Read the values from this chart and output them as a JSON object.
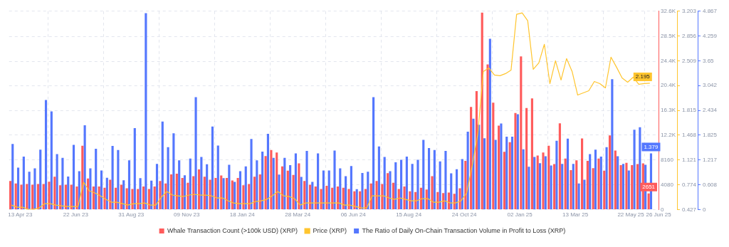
{
  "chart_data": {
    "type": "bar",
    "x": [
      "2023-04-02",
      "2023-04-09",
      "2023-04-16",
      "2023-04-23",
      "2023-04-30",
      "2023-05-07",
      "2023-05-14",
      "2023-05-21",
      "2023-05-28",
      "2023-06-04",
      "2023-06-11",
      "2023-06-18",
      "2023-06-25",
      "2023-07-02",
      "2023-07-09",
      "2023-07-16",
      "2023-07-23",
      "2023-07-30",
      "2023-08-06",
      "2023-08-13",
      "2023-08-20",
      "2023-08-27",
      "2023-09-03",
      "2023-09-10",
      "2023-09-17",
      "2023-09-24",
      "2023-10-01",
      "2023-10-08",
      "2023-10-15",
      "2023-10-22",
      "2023-10-29",
      "2023-11-05",
      "2023-11-12",
      "2023-11-19",
      "2023-11-26",
      "2023-12-03",
      "2023-12-10",
      "2023-12-17",
      "2023-12-24",
      "2023-12-31",
      "2024-01-07",
      "2024-01-14",
      "2024-01-21",
      "2024-01-28",
      "2024-02-04",
      "2024-02-11",
      "2024-02-18",
      "2024-02-25",
      "2024-03-03",
      "2024-03-10",
      "2024-03-17",
      "2024-03-24",
      "2024-03-31",
      "2024-04-07",
      "2024-04-14",
      "2024-04-21",
      "2024-04-28",
      "2024-05-05",
      "2024-05-12",
      "2024-05-19",
      "2024-05-26",
      "2024-06-02",
      "2024-06-09",
      "2024-06-16",
      "2024-06-23",
      "2024-06-30",
      "2024-07-07",
      "2024-07-14",
      "2024-07-21",
      "2024-07-28",
      "2024-08-04",
      "2024-08-11",
      "2024-08-18",
      "2024-08-25",
      "2024-09-01",
      "2024-09-08",
      "2024-09-15",
      "2024-09-22",
      "2024-09-29",
      "2024-10-06",
      "2024-10-13",
      "2024-10-20",
      "2024-10-27",
      "2024-11-03",
      "2024-11-10",
      "2024-11-17",
      "2024-11-24",
      "2024-12-01",
      "2024-12-08",
      "2024-12-15",
      "2024-12-22",
      "2024-12-29",
      "2025-01-05",
      "2025-01-12",
      "2025-01-19",
      "2025-01-26",
      "2025-02-02",
      "2025-02-09",
      "2025-02-16",
      "2025-02-23",
      "2025-03-02",
      "2025-03-09",
      "2025-03-16",
      "2025-03-23",
      "2025-03-30",
      "2025-04-06",
      "2025-04-13",
      "2025-04-20",
      "2025-04-27",
      "2025-05-04",
      "2025-05-11",
      "2025-05-18",
      "2025-05-25",
      "2025-06-01",
      "2025-06-08",
      "2025-06-15"
    ],
    "series": [
      {
        "name": "Whale Transaction Count (>100k USD) (XRP)",
        "axis": "y",
        "color": "#ff5b5b",
        "values": [
          4700,
          4300,
          4100,
          4200,
          4100,
          4200,
          4200,
          4600,
          5400,
          4000,
          4100,
          4100,
          3800,
          10500,
          5100,
          3800,
          3800,
          3600,
          4900,
          3600,
          4100,
          3500,
          3400,
          3400,
          3800,
          3400,
          3800,
          4700,
          4300,
          5800,
          5900,
          5200,
          4400,
          5500,
          6600,
          5400,
          4900,
          5200,
          5600,
          5200,
          4800,
          5200,
          4000,
          4200,
          5400,
          5800,
          8800,
          9800,
          9400,
          7100,
          6400,
          5700,
          7600,
          4700,
          4100,
          3800,
          3400,
          3900,
          3600,
          3800,
          3600,
          3400,
          3000,
          3000,
          3400,
          4300,
          4700,
          4200,
          6000,
          4400,
          3400,
          3800,
          3000,
          2900,
          3600,
          3300,
          5500,
          2900,
          2700,
          2800,
          2600,
          3500,
          8000,
          16900,
          19500,
          32400,
          23900,
          17600,
          13800,
          9500,
          11100,
          15900,
          25200,
          16700,
          18300,
          8900,
          9400,
          10500,
          7500,
          14200,
          8400,
          6500,
          8100,
          11700,
          8000,
          6800,
          8400,
          6400,
          12200,
          9700,
          7300,
          7700,
          7300,
          7500,
          7600,
          2651
        ],
        "value_labels": [
          null,
          null,
          null,
          null,
          null,
          null,
          null,
          null,
          null,
          null,
          null,
          null,
          null,
          null,
          null,
          null,
          null,
          null,
          null,
          null,
          null,
          null,
          null,
          null,
          null,
          null,
          null,
          null,
          null,
          null,
          null,
          null,
          null,
          null,
          null,
          null,
          null,
          null,
          null,
          null,
          null,
          null,
          null,
          null,
          null,
          null,
          null,
          null,
          null,
          null,
          null,
          null,
          null,
          null,
          null,
          null,
          null,
          null,
          null,
          null,
          null,
          null,
          null,
          null,
          null,
          null,
          null,
          null,
          null,
          null,
          null,
          null,
          null,
          null,
          null,
          null,
          null,
          null,
          null,
          null,
          null,
          null,
          null,
          null,
          null,
          null,
          null,
          null,
          null,
          null,
          null,
          null,
          null,
          null,
          null,
          null,
          null,
          null,
          null,
          null,
          null,
          null,
          null,
          null,
          null,
          null,
          null,
          null,
          null,
          null,
          null,
          null,
          null,
          null,
          null,
          "2651"
        ]
      },
      {
        "name": "Price (XRP)",
        "type": "line",
        "axis": "y2",
        "color": "#ffc52e",
        "values": [
          0.49,
          0.46,
          0.46,
          0.43,
          0.43,
          0.45,
          0.51,
          0.51,
          0.49,
          0.48,
          0.47,
          0.47,
          0.47,
          0.81,
          0.69,
          0.66,
          0.62,
          0.57,
          0.53,
          0.53,
          0.51,
          0.49,
          0.51,
          0.51,
          0.52,
          0.49,
          0.49,
          0.6,
          0.68,
          0.63,
          0.62,
          0.61,
          0.63,
          0.64,
          0.63,
          0.63,
          0.62,
          0.59,
          0.59,
          0.55,
          0.52,
          0.51,
          0.51,
          0.51,
          0.54,
          0.55,
          0.57,
          0.62,
          0.68,
          0.62,
          0.61,
          0.58,
          0.49,
          0.52,
          0.52,
          0.52,
          0.52,
          0.52,
          0.52,
          0.52,
          0.49,
          0.49,
          0.47,
          0.45,
          0.45,
          0.62,
          0.62,
          0.62,
          0.59,
          0.57,
          0.59,
          0.57,
          0.55,
          0.55,
          0.58,
          0.58,
          0.53,
          0.53,
          0.55,
          0.52,
          0.52,
          0.55,
          0.66,
          1.04,
          1.48,
          2.36,
          2.41,
          2.31,
          2.3,
          2.33,
          2.38,
          3.16,
          3.18,
          3.07,
          2.39,
          2.48,
          2.74,
          2.19,
          2.51,
          2.24,
          2.54,
          2.36,
          2.03,
          2.06,
          2.09,
          2.22,
          2.19,
          2.13,
          2.56,
          2.42,
          2.27,
          2.21,
          2.28,
          2.18,
          2.19,
          2.195
        ],
        "value_labels": [
          null,
          null,
          null,
          null,
          null,
          null,
          null,
          null,
          null,
          null,
          null,
          null,
          null,
          null,
          null,
          null,
          null,
          null,
          null,
          null,
          null,
          null,
          null,
          null,
          null,
          null,
          null,
          null,
          null,
          null,
          null,
          null,
          null,
          null,
          null,
          null,
          null,
          null,
          null,
          null,
          null,
          null,
          null,
          null,
          null,
          null,
          null,
          null,
          null,
          null,
          null,
          null,
          null,
          null,
          null,
          null,
          null,
          null,
          null,
          null,
          null,
          null,
          null,
          null,
          null,
          null,
          null,
          null,
          null,
          null,
          null,
          null,
          null,
          null,
          null,
          null,
          null,
          null,
          null,
          null,
          null,
          null,
          null,
          null,
          null,
          null,
          null,
          null,
          null,
          null,
          null,
          null,
          null,
          null,
          null,
          null,
          null,
          null,
          null,
          null,
          null,
          null,
          null,
          null,
          null,
          null,
          null,
          null,
          null,
          null,
          null,
          null,
          null,
          null,
          null,
          "2.195"
        ]
      },
      {
        "name": "The Ratio of Daily On-Chain Transaction Volume in Profit to Loss (XRP)",
        "axis": "y3",
        "color": "#5477fe",
        "values": [
          1.61,
          1.03,
          1.3,
          0.93,
          1.01,
          1.47,
          2.69,
          2.41,
          1.36,
          1.27,
          0.81,
          1.59,
          0.94,
          2.07,
          1.01,
          1.49,
          0.96,
          0.78,
          1.56,
          1.46,
          0.72,
          1.21,
          2.0,
          0.77,
          4.82,
          0.71,
          1.12,
          2.16,
          1.53,
          1.87,
          1.21,
          0.84,
          1.25,
          2.76,
          1.29,
          1.11,
          2.04,
          1.57,
          0.77,
          1.1,
          0.68,
          0.94,
          1.06,
          1.73,
          1.21,
          1.42,
          1.86,
          1.27,
          0.86,
          1.27,
          1.09,
          1.38,
          0.8,
          1.44,
          0.68,
          1.38,
          0.96,
          0.96,
          1.45,
          1.01,
          0.82,
          1.07,
          0.5,
          0.9,
          0.93,
          2.76,
          1.55,
          1.29,
          0.94,
          1.16,
          1.22,
          1.3,
          1.12,
          1.22,
          1.71,
          1.51,
          1.46,
          1.18,
          1.44,
          0.89,
          0.99,
          1.24,
          1.91,
          2.23,
          2.08,
          1.75,
          4.19,
          1.71,
          2.11,
          1.79,
          1.79,
          2.34,
          1.48,
          1.05,
          1.29,
          1.14,
          1.31,
          1.08,
          1.69,
          1.12,
          1.74,
          1.12,
          0.64,
          0.73,
          1.36,
          1.47,
          1.3,
          1.53,
          3.2,
          1.31,
          1.12,
          0.96,
          1.96,
          2.02,
          1.1,
          1.379
        ],
        "value_labels": [
          null,
          null,
          null,
          null,
          null,
          null,
          null,
          null,
          null,
          null,
          null,
          null,
          null,
          null,
          null,
          null,
          null,
          null,
          null,
          null,
          null,
          null,
          null,
          null,
          null,
          null,
          null,
          null,
          null,
          null,
          null,
          null,
          null,
          null,
          null,
          null,
          null,
          null,
          null,
          null,
          null,
          null,
          null,
          null,
          null,
          null,
          null,
          null,
          null,
          null,
          null,
          null,
          null,
          null,
          null,
          null,
          null,
          null,
          null,
          null,
          null,
          null,
          null,
          null,
          null,
          null,
          null,
          null,
          null,
          null,
          null,
          null,
          null,
          null,
          null,
          null,
          null,
          null,
          null,
          null,
          null,
          null,
          null,
          null,
          null,
          null,
          null,
          null,
          null,
          null,
          null,
          null,
          null,
          null,
          null,
          null,
          null,
          null,
          null,
          null,
          null,
          null,
          null,
          null,
          null,
          null,
          null,
          null,
          null,
          null,
          null,
          null,
          null,
          null,
          null,
          "1.379"
        ]
      }
    ],
    "xlim": [
      "2023-03-30",
      "2025-06-26"
    ],
    "xticks": [
      {
        "value": "2023-04-13",
        "label": "13 Apr 23"
      },
      {
        "value": "2023-06-22",
        "label": "22 Jun 23"
      },
      {
        "value": "2023-08-31",
        "label": "31 Aug 23"
      },
      {
        "value": "2023-11-09",
        "label": "09 Nov 23"
      },
      {
        "value": "2024-01-18",
        "label": "18 Jan 24"
      },
      {
        "value": "2024-03-28",
        "label": "28 Mar 24"
      },
      {
        "value": "2024-06-06",
        "label": "06 Jun 24"
      },
      {
        "value": "2024-08-15",
        "label": "15 Aug 24"
      },
      {
        "value": "2024-10-24",
        "label": "24 Oct 24"
      },
      {
        "value": "2025-01-02",
        "label": "02 Jan 25"
      },
      {
        "value": "2025-03-13",
        "label": "13 Mar 25"
      },
      {
        "value": "2025-05-22",
        "label": "22 May 25"
      },
      {
        "value": "2025-06-26",
        "label": "26 Jun 25"
      }
    ],
    "ylim": [
      0,
      32640
    ],
    "yticks": [
      0,
      4080,
      8160,
      {
        "value": 12240,
        "label": "12.2K"
      },
      {
        "value": 16320,
        "label": "16.3K"
      },
      {
        "value": 20400,
        "label": "20.4K"
      },
      {
        "value": 24400,
        "label": "24.4K"
      },
      {
        "value": 28500,
        "label": "28.5K"
      },
      {
        "value": 32640,
        "label": "32.6K"
      }
    ],
    "y2lim": [
      0.427,
      3.203
    ],
    "y2ticks": [
      0.427,
      0.774,
      1.121,
      1.468,
      1.815,
      {
        "value": 2.162,
        "label": null
      },
      2.509,
      2.856,
      3.203
    ],
    "y3lim": [
      0,
      4.867
    ],
    "y3ticks": [
      0,
      0.608,
      1.217,
      1.825,
      2.434,
      3.042,
      3.65,
      4.259,
      4.867
    ],
    "grid": true,
    "legend": "bottom"
  }
}
